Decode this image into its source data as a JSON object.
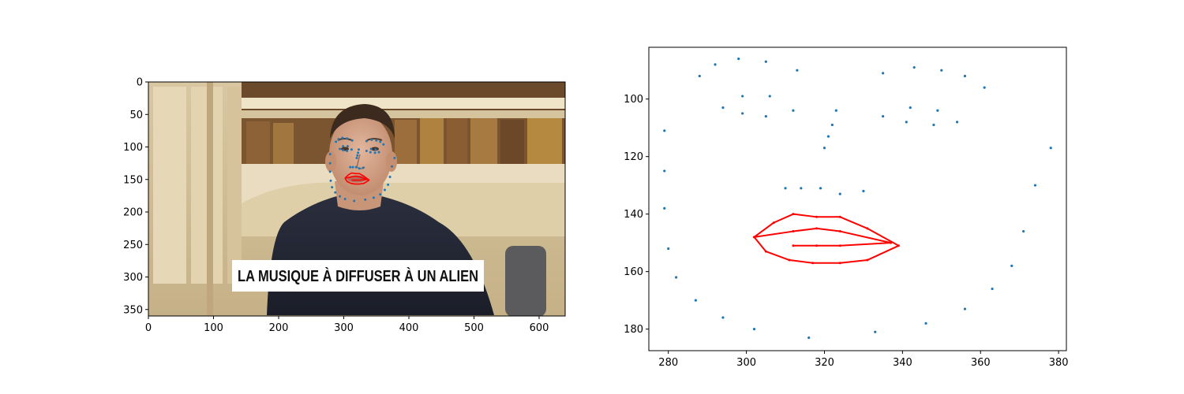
{
  "chart_data": [
    {
      "type": "scatter",
      "panel": "left",
      "background": "photo of a man in front of bookshelves with facial landmarks overlaid",
      "caption_text": "LA MUSIQUE À DIFFUSER À UN ALIEN",
      "xlim": [
        0,
        640
      ],
      "ylim": [
        360,
        0
      ],
      "x_ticks": [
        0,
        100,
        200,
        300,
        400,
        500,
        600
      ],
      "y_ticks": [
        0,
        50,
        100,
        150,
        200,
        250,
        300,
        350
      ],
      "landmark_color": "#1f77b4",
      "lip_color": "#ff0000",
      "grid": false
    },
    {
      "type": "scatter",
      "panel": "right",
      "xlim": [
        275,
        382
      ],
      "ylim": [
        187.5,
        82
      ],
      "x_ticks": [
        280,
        300,
        320,
        340,
        360,
        380
      ],
      "y_ticks": [
        100,
        120,
        140,
        160,
        180
      ],
      "grid": false,
      "series": [
        {
          "role": "face landmarks",
          "color": "#1f77b4",
          "points": [
            [
              279,
              111
            ],
            [
              279,
              125
            ],
            [
              279,
              138
            ],
            [
              280,
              152
            ],
            [
              282,
              162
            ],
            [
              287,
              170
            ],
            [
              294,
              176
            ],
            [
              302,
              180
            ],
            [
              316,
              183
            ],
            [
              333,
              181
            ],
            [
              346,
              178
            ],
            [
              356,
              173
            ],
            [
              363,
              166
            ],
            [
              368,
              158
            ],
            [
              371,
              146
            ],
            [
              374,
              130
            ],
            [
              378,
              117
            ],
            [
              288,
              92
            ],
            [
              292,
              88
            ],
            [
              298,
              86
            ],
            [
              305,
              87
            ],
            [
              313,
              90
            ],
            [
              335,
              91
            ],
            [
              343,
              89
            ],
            [
              350,
              90
            ],
            [
              356,
              92
            ],
            [
              361,
              96
            ],
            [
              323,
              104
            ],
            [
              322,
              109
            ],
            [
              321,
              113
            ],
            [
              320,
              117
            ],
            [
              310,
              131
            ],
            [
              314,
              131
            ],
            [
              319,
              131
            ],
            [
              324,
              133
            ],
            [
              330,
              132
            ],
            [
              294,
              103
            ],
            [
              299,
              99
            ],
            [
              306,
              99
            ],
            [
              312,
              104
            ],
            [
              305,
              106
            ],
            [
              299,
              105
            ],
            [
              335,
              106
            ],
            [
              342,
              103
            ],
            [
              349,
              104
            ],
            [
              354,
              108
            ],
            [
              348,
              109
            ],
            [
              341,
              108
            ]
          ]
        },
        {
          "role": "lip outline",
          "color": "#ff0000",
          "points": [
            [
              302,
              148
            ],
            [
              307,
              143
            ],
            [
              312,
              140
            ],
            [
              318,
              141
            ],
            [
              324,
              141
            ],
            [
              331,
              145
            ],
            [
              339,
              151
            ],
            [
              331,
              156
            ],
            [
              324,
              157
            ],
            [
              317,
              157
            ],
            [
              311,
              156
            ],
            [
              305,
              153
            ],
            [
              302,
              148
            ],
            [
              312,
              146
            ],
            [
              318,
              145
            ],
            [
              324,
              146
            ],
            [
              337,
              150
            ],
            [
              324,
              151
            ],
            [
              318,
              151
            ],
            [
              312,
              151
            ]
          ]
        }
      ]
    }
  ]
}
